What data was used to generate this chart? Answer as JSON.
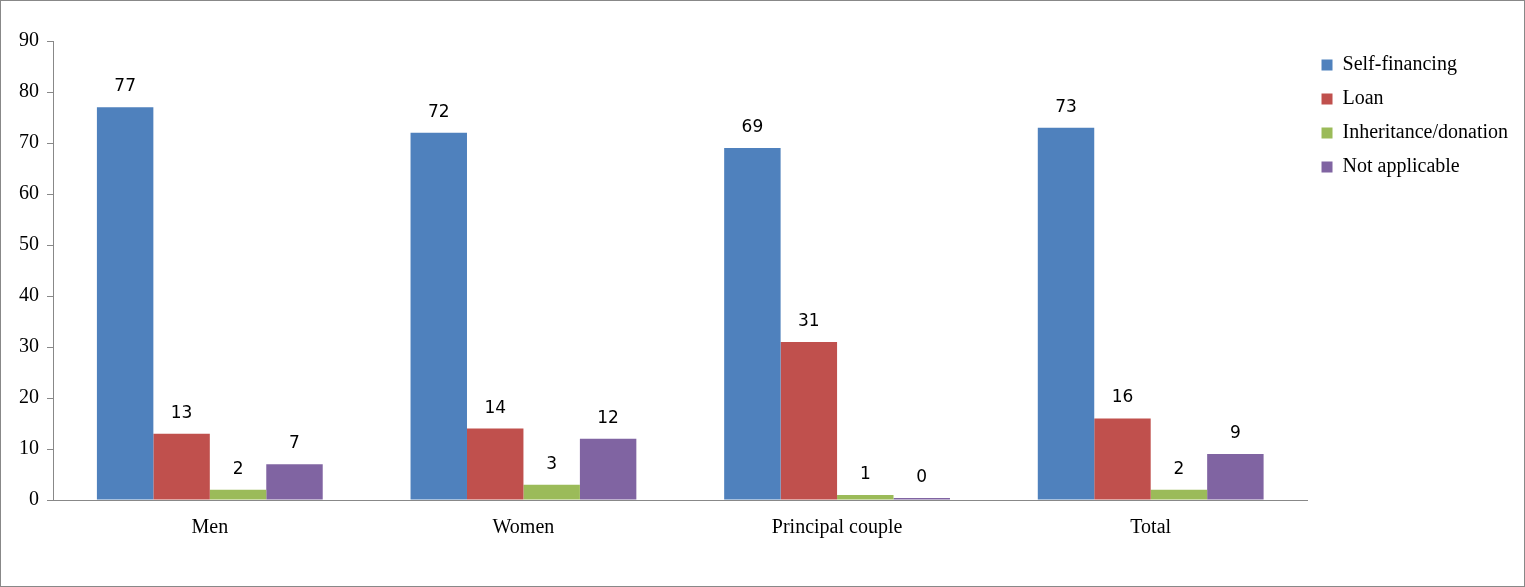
{
  "chart_data": {
    "type": "bar",
    "categories": [
      "Men",
      "Women",
      "Principal couple",
      "Total"
    ],
    "series": [
      {
        "name": "Self-financing",
        "color": "#4f81bd",
        "values": [
          77,
          72,
          69,
          73
        ],
        "value_labels": [
          "77",
          "72",
          "69",
          "73"
        ]
      },
      {
        "name": "Loan",
        "color": "#c0504d",
        "values": [
          13,
          14,
          31,
          16
        ],
        "value_labels": [
          "13",
          "14",
          "31",
          "16"
        ]
      },
      {
        "name": "Inheritance/donation",
        "color": "#9bbb59",
        "values": [
          2,
          3,
          1,
          2
        ],
        "value_labels": [
          "2",
          "3",
          "1",
          "2"
        ]
      },
      {
        "name": "Not applicable",
        "color": "#8064a2",
        "values": [
          7,
          12,
          0.4,
          9
        ],
        "value_labels": [
          "7",
          "12",
          "0",
          "9"
        ]
      }
    ],
    "ylim": [
      0,
      90
    ],
    "yticks": [
      0,
      10,
      20,
      30,
      40,
      50,
      60,
      70,
      80,
      90
    ],
    "grid": false,
    "legend": "top right"
  }
}
